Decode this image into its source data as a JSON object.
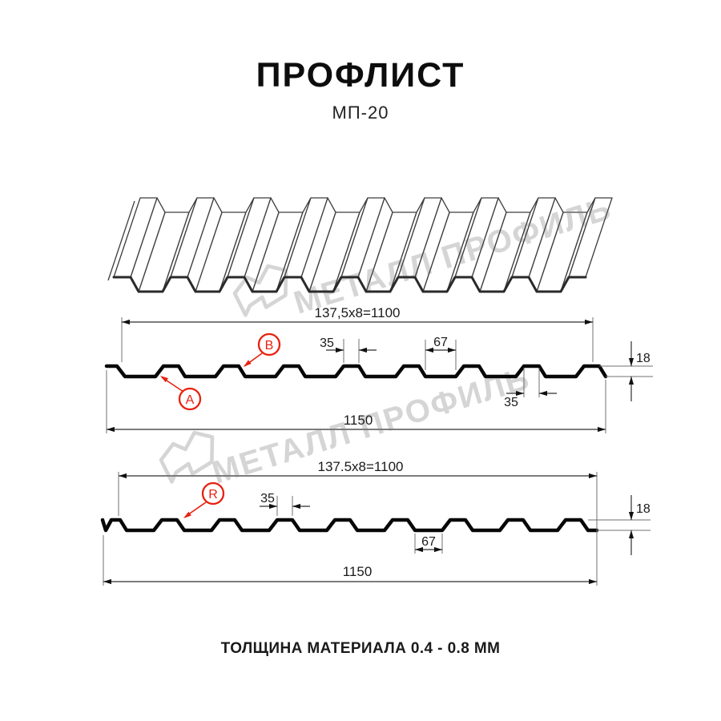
{
  "title": "ПРОФЛИСТ",
  "subtitle": "МП-20",
  "footer": "ТОЛЩИНА МАТЕРИАЛА 0.4 - 0.8 ММ",
  "watermark": {
    "text": "МЕТАЛЛ ПРОФИЛЬ"
  },
  "colors": {
    "accent_red": "#e8210f",
    "ink": "#111111",
    "watermark_gray": "#d5d5d5"
  },
  "section_top": {
    "working_width": "137,5x8=1100",
    "total_width": "1150",
    "crest_width": "35",
    "valley_width": "67",
    "crest_width_bottom": "35",
    "height": "18",
    "callout_a": "A",
    "callout_b": "B"
  },
  "section_bottom": {
    "working_width": "137.5x8=1100",
    "total_width": "1150",
    "crest_width": "35",
    "valley_width": "67",
    "height": "18",
    "callout_r": "R"
  }
}
